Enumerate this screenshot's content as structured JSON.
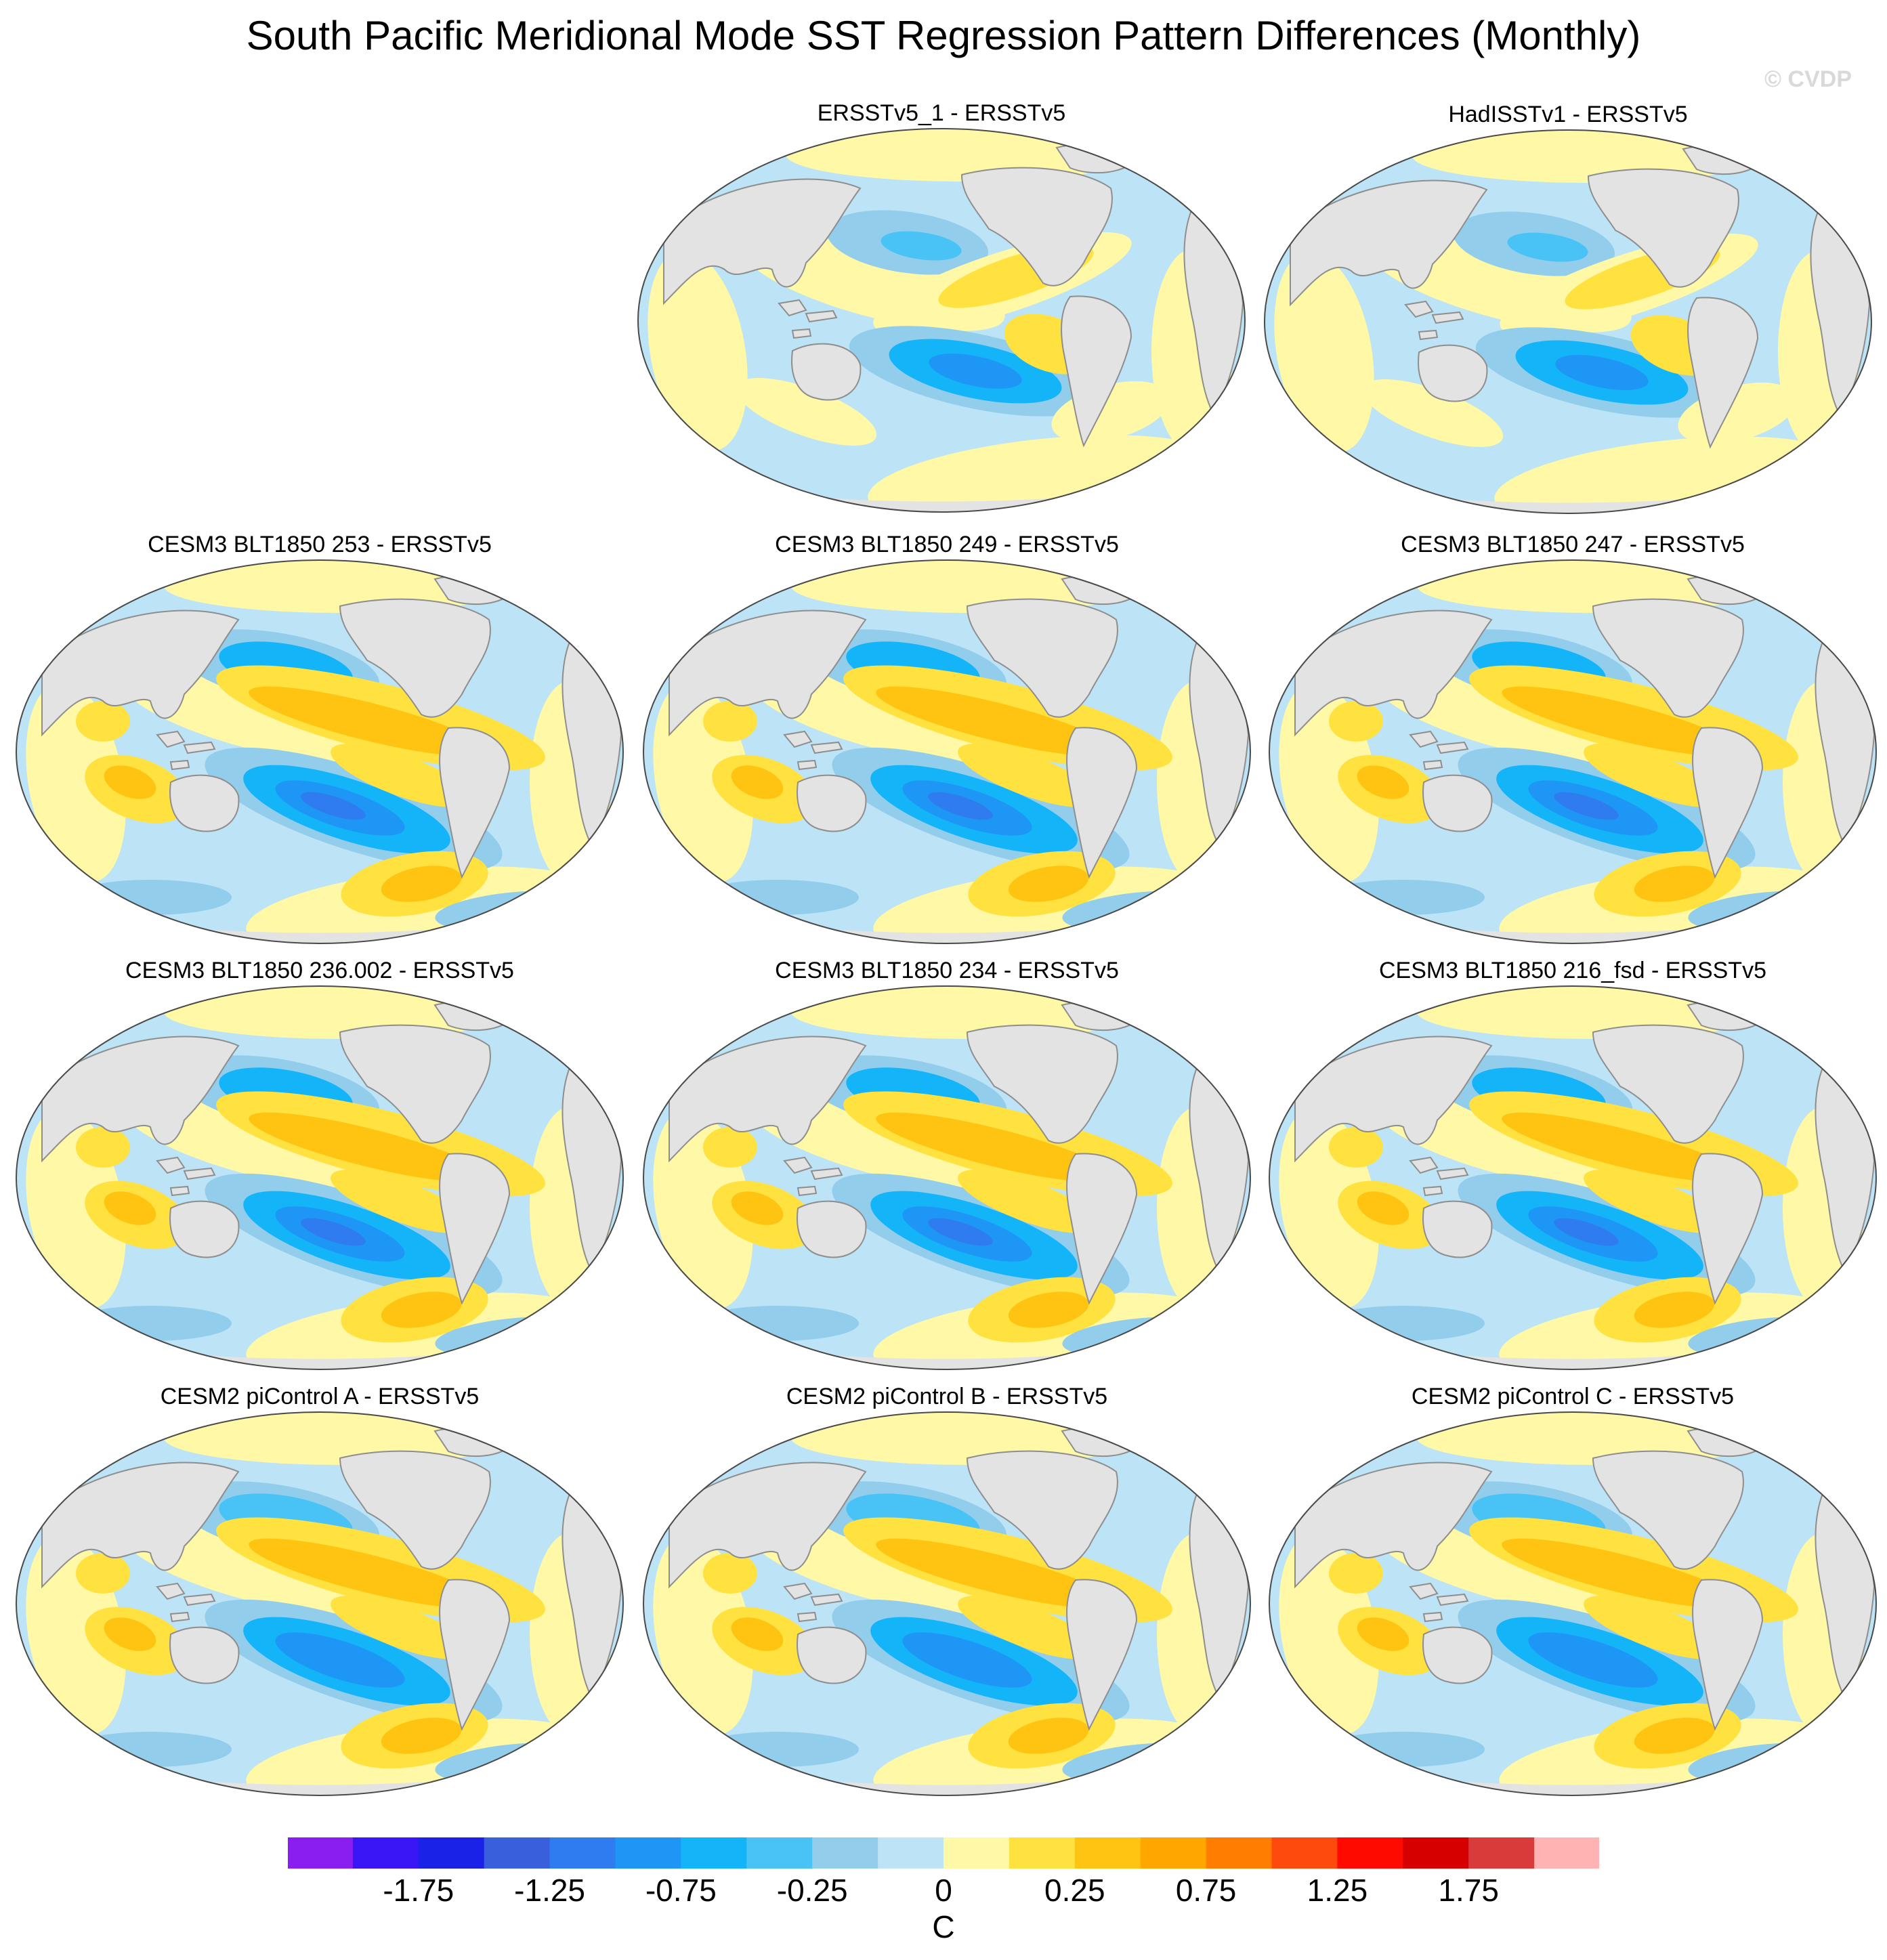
{
  "title": "South Pacific Meridional Mode SST Regression Pattern Differences (Monthly)",
  "watermark": "© CVDP",
  "panels": [
    {
      "title": "ERSSTv5_1 - ERSSTv5",
      "variant": "obs1"
    },
    {
      "title": "HadISSTv1 - ERSSTv5",
      "variant": "obs2"
    },
    {
      "title": "CESM3 BLT1850 253 - ERSSTv5",
      "variant": "model"
    },
    {
      "title": "CESM3 BLT1850 249 - ERSSTv5",
      "variant": "model"
    },
    {
      "title": "CESM3 BLT1850 247 - ERSSTv5",
      "variant": "model"
    },
    {
      "title": "CESM3 BLT1850 236.002 - ERSSTv5",
      "variant": "model"
    },
    {
      "title": "CESM3 BLT1850 234 - ERSSTv5",
      "variant": "model"
    },
    {
      "title": "CESM3 BLT1850 216_fsd - ERSSTv5",
      "variant": "model"
    },
    {
      "title": "CESM2 piControl A - ERSSTv5",
      "variant": "cesm2"
    },
    {
      "title": "CESM2 piControl B - ERSSTv5",
      "variant": "cesm2"
    },
    {
      "title": "CESM2 piControl C - ERSSTv5",
      "variant": "cesm2"
    }
  ],
  "colorbar": {
    "unit": "C",
    "labels": [
      "-1.75",
      "-1.25",
      "-0.75",
      "-0.25",
      "0",
      "0.25",
      "0.75",
      "1.25",
      "1.75"
    ],
    "colors": [
      "#8a1df0",
      "#3a15f5",
      "#1a22e8",
      "#3a5fdc",
      "#2f7cf0",
      "#1e96f5",
      "#14b4f8",
      "#49c3f5",
      "#93cdec",
      "#bde3f6",
      "#fff8a6",
      "#ffe140",
      "#ffc412",
      "#ffa600",
      "#ff7d00",
      "#ff4a0d",
      "#ff0a00",
      "#d60000",
      "#d93a3a",
      "#ffb3b3"
    ]
  }
}
